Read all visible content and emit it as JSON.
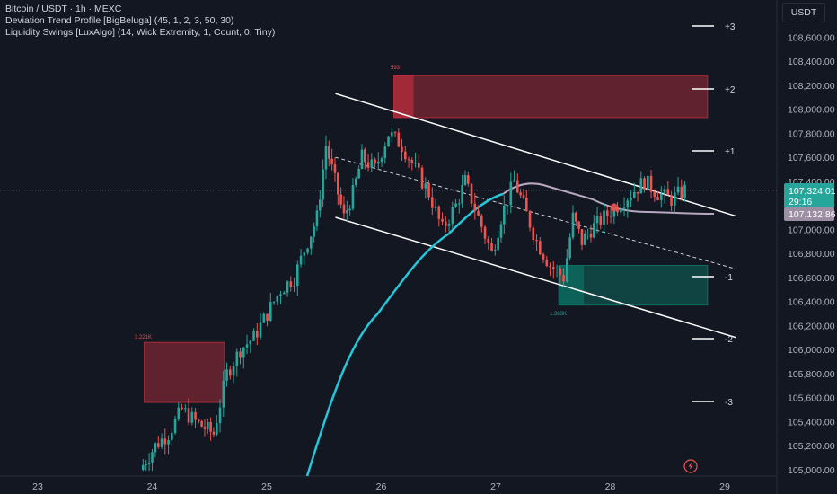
{
  "legend": {
    "symbol": "Bitcoin / USDT · 1h · MEXC",
    "indicator1": "Deviation Trend Profile [BigBeluga] (45, 1, 2, 3, 50, 30)",
    "indicator2": "Liquidity Swings [LuxAlgo] (14, Wick Extremity, 1, Count, 0, Tiny)"
  },
  "currency_button": "USDT",
  "price_badge": {
    "price": "107,324.01",
    "countdown": "29:16",
    "color": "#26a69a"
  },
  "ma_badge": {
    "price": "107,132.86",
    "color": "#9c8fa3"
  },
  "liquidity_labels": {
    "low_zone": "3.221K",
    "high_zone": "593",
    "bottom_zone": "1.383K"
  },
  "deviation_labels": [
    "+3",
    "+2",
    "+1",
    "-1",
    "-2",
    "-3"
  ],
  "colors": {
    "up": "#26a69a",
    "down": "#ef5350",
    "background": "#131722",
    "ema": "#26c6da",
    "mean_line": "#b8a7bf",
    "channel": "#ffffff",
    "bear_zone": "#f23645",
    "bull_zone": "#089981"
  },
  "chart_data": {
    "type": "candlestick",
    "symbol": "BTC/USDT",
    "timeframe": "1h",
    "x_ticks": [
      "23",
      "24",
      "25",
      "26",
      "27",
      "28",
      "29"
    ],
    "y_ticks": [
      "105,000.00",
      "105,200.00",
      "105,400.00",
      "105,600.00",
      "105,800.00",
      "106,000.00",
      "106,200.00",
      "106,400.00",
      "106,600.00",
      "106,800.00",
      "107,000.00",
      "107,200.00",
      "107,400.00",
      "107,600.00",
      "107,800.00",
      "108,000.00",
      "108,200.00",
      "108,400.00",
      "108,600.00"
    ],
    "ylim": [
      104980,
      108980
    ],
    "last_price": 107324.01,
    "mean_line_price": 107132.86,
    "trend_channel": {
      "upper": [
        [
          25.6,
          108130
        ],
        [
          29.1,
          107110
        ]
      ],
      "mid": [
        [
          25.6,
          107600
        ],
        [
          29.1,
          106670
        ]
      ],
      "lower": [
        [
          25.6,
          107100
        ],
        [
          29.1,
          106100
        ]
      ]
    },
    "liquidity_zones": [
      {
        "x": [
          23.93,
          24.63
        ],
        "y": [
          105560,
          106060
        ],
        "side": "sell"
      },
      {
        "x": [
          26.11,
          28.85
        ],
        "y": [
          107930,
          108280
        ],
        "side": "sell"
      },
      {
        "x": [
          27.55,
          28.85
        ],
        "y": [
          106370,
          106700
        ],
        "side": "buy"
      }
    ],
    "grid": false
  }
}
